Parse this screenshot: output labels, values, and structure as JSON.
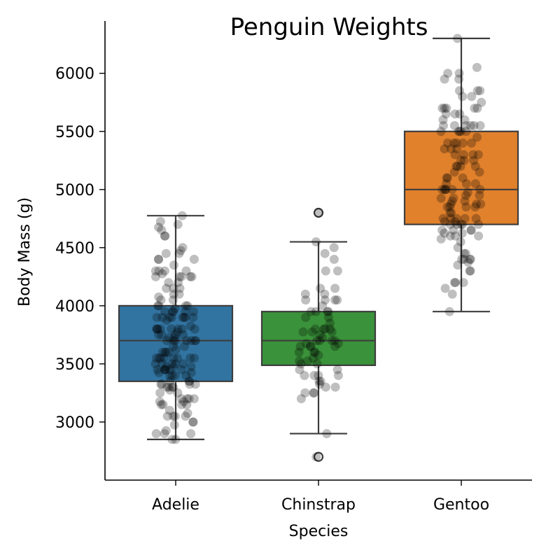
{
  "chart_data": {
    "type": "box",
    "title": "Penguin Weights",
    "xlabel": "Species",
    "ylabel": "Body Mass (g)",
    "categories": [
      "Adelie",
      "Chinstrap",
      "Gentoo"
    ],
    "ylim": [
      2500,
      6450
    ],
    "yticks": [
      3000,
      3500,
      4000,
      4500,
      5000,
      5500,
      6000
    ],
    "grid": false,
    "colors": {
      "Adelie": "#3274a1",
      "Chinstrap": "#3a923a",
      "Gentoo": "#e1812c",
      "box_edge": "#3d3d3d",
      "points": "#000000"
    },
    "boxes": [
      {
        "name": "Adelie",
        "q1": 3350,
        "median": 3700,
        "q3": 4000,
        "whisker_low": 2850,
        "whisker_high": 4775,
        "outliers": []
      },
      {
        "name": "Chinstrap",
        "q1": 3488,
        "median": 3700,
        "q3": 3950,
        "whisker_low": 2900,
        "whisker_high": 4550,
        "outliers": [
          4800,
          2700
        ]
      },
      {
        "name": "Gentoo",
        "q1": 4700,
        "median": 5000,
        "q3": 5500,
        "whisker_low": 3950,
        "whisker_high": 6300,
        "outliers": []
      }
    ],
    "points": [
      {
        "name": "Adelie",
        "values": [
          3750,
          3800,
          3250,
          3450,
          3650,
          3625,
          4675,
          3475,
          4250,
          3300,
          3700,
          3200,
          3800,
          4400,
          3700,
          3450,
          4500,
          3325,
          4200,
          3400,
          3600,
          3800,
          3950,
          3800,
          3800,
          3550,
          3200,
          3150,
          3950,
          3250,
          3900,
          3300,
          3900,
          3325,
          4150,
          3950,
          3550,
          3300,
          4650,
          3150,
          3900,
          3100,
          4400,
          3000,
          4600,
          3425,
          2975,
          3450,
          4150,
          3500,
          4300,
          3450,
          4050,
          2900,
          3700,
          3550,
          3800,
          2850,
          3750,
          3150,
          4400,
          3600,
          4050,
          2850,
          3950,
          3350,
          4100,
          3050,
          4450,
          3600,
          3900,
          3550,
          4150,
          3700,
          4250,
          3700,
          3900,
          3550,
          4000,
          3200,
          4700,
          3800,
          4200,
          3350,
          3550,
          3800,
          3500,
          3950,
          3600,
          3550,
          4300,
          3400,
          4450,
          3300,
          4300,
          3700,
          4350,
          2900,
          4100,
          3725,
          4725,
          3075,
          4250,
          2925,
          3550,
          3750,
          3900,
          3175,
          4775,
          3825,
          4600,
          3200,
          4275,
          3900,
          4075,
          2900,
          3775,
          3350,
          3325,
          3150,
          3500,
          3450,
          3875,
          3050,
          4000,
          3275,
          4300,
          3050,
          4000,
          3325,
          3500,
          3500,
          4475,
          3425,
          3900,
          3175,
          3975,
          3400,
          4250,
          3400,
          3475,
          3050,
          3725,
          3000,
          3650,
          4250,
          3475,
          3450,
          3750,
          3700,
          4000
        ]
      },
      {
        "name": "Chinstrap",
        "values": [
          3500,
          3900,
          3650,
          3525,
          3725,
          3950,
          3250,
          3750,
          4150,
          3700,
          3800,
          3775,
          3700,
          4050,
          3575,
          4050,
          3300,
          3700,
          3450,
          4400,
          3600,
          3400,
          2900,
          3800,
          3300,
          4150,
          3400,
          3800,
          3700,
          4550,
          3200,
          4300,
          3350,
          4100,
          3600,
          3900,
          3850,
          4800,
          2700,
          4500,
          3950,
          3650,
          3550,
          3500,
          3675,
          4450,
          3400,
          4300,
          3250,
          3675,
          3325,
          3950,
          3600,
          4050,
          3350,
          3450,
          3250,
          4050,
          3800,
          3525,
          3950,
          3650,
          3650,
          4000,
          3400,
          3775,
          4100,
          3775
        ]
      },
      {
        "name": "Gentoo",
        "values": [
          4500,
          5700,
          4450,
          5700,
          5400,
          4550,
          4800,
          5200,
          4400,
          5150,
          4650,
          5550,
          4650,
          5850,
          4200,
          5850,
          4150,
          6300,
          4800,
          5350,
          5700,
          5000,
          4400,
          5050,
          5000,
          5100,
          4100,
          5650,
          4600,
          5550,
          5250,
          4700,
          5050,
          6050,
          5150,
          5400,
          4950,
          5250,
          4350,
          5350,
          3950,
          5700,
          4300,
          4750,
          5550,
          4900,
          4200,
          5400,
          5100,
          5300,
          4850,
          5300,
          4400,
          5000,
          4900,
          5050,
          4300,
          5000,
          4450,
          5550,
          4200,
          5300,
          4400,
          5650,
          4700,
          5700,
          4650,
          5800,
          4700,
          5550,
          4750,
          5000,
          5100,
          5200,
          4700,
          5800,
          4600,
          6000,
          4750,
          5950,
          4625,
          5450,
          4725,
          5350,
          4750,
          5600,
          4600,
          5300,
          4875,
          5550,
          4950,
          5400,
          4750,
          5650,
          4850,
          5200,
          4925,
          4875,
          4625,
          5250,
          4850,
          5600,
          4975,
          5500,
          4725,
          5500,
          4700,
          5500,
          4575,
          5500,
          5000,
          5950,
          4650,
          5500,
          4375,
          5850,
          4875,
          6000,
          4925,
          4850,
          5750,
          5200,
          5400
        ]
      }
    ]
  }
}
